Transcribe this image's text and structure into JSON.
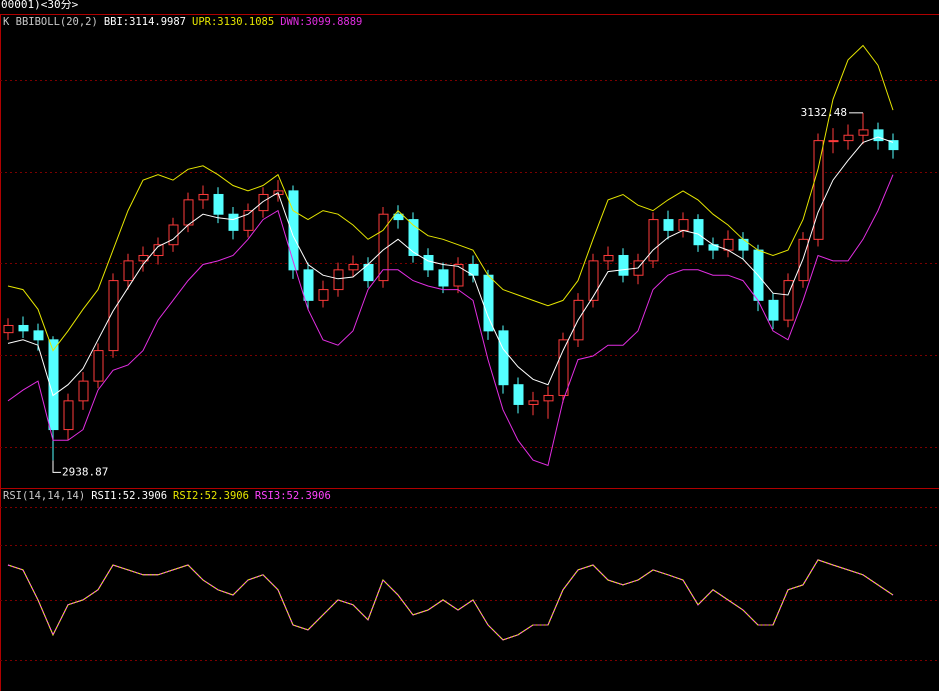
{
  "chart_data": [
    {
      "type": "candlestick",
      "title": "00001)<30分>",
      "indicator": "K  BBIBOLL(20,2)",
      "ylim": [
        2924,
        3187
      ],
      "up_color": "#ff3b3b",
      "down_color": "#54ffff",
      "high_label": "3132.48",
      "low_label": "2938.87",
      "ohlc": {
        "open": [
          3010,
          3014,
          3011,
          3006,
          2956,
          2972,
          2983,
          3000,
          3039,
          3050,
          3053,
          3059,
          3070,
          3084,
          3087,
          3076,
          3067,
          3078,
          3087,
          3089,
          3045,
          3028,
          3034,
          3045,
          3048,
          3039,
          3076,
          3073,
          3053,
          3045,
          3036,
          3048,
          3042,
          3011,
          2981,
          2970,
          2972,
          2975,
          3006,
          3028,
          3050,
          3053,
          3042,
          3050,
          3073,
          3067,
          3073,
          3059,
          3056,
          3062,
          3056,
          3028,
          3017,
          3039,
          3062,
          3117,
          3117,
          3120,
          3123,
          3117
        ],
        "high": [
          3018,
          3019,
          3015,
          3008,
          2976,
          2988,
          3004,
          3043,
          3054,
          3058,
          3063,
          3074,
          3088,
          3092,
          3091,
          3080,
          3082,
          3091,
          3095,
          3092,
          3049,
          3039,
          3049,
          3053,
          3052,
          3080,
          3081,
          3077,
          3057,
          3049,
          3052,
          3053,
          3045,
          3014,
          2985,
          2977,
          2980,
          3010,
          3032,
          3054,
          3058,
          3057,
          3054,
          3077,
          3078,
          3077,
          3076,
          3063,
          3067,
          3066,
          3059,
          3032,
          3043,
          3066,
          3121,
          3124,
          3126,
          3132.48,
          3127,
          3121
        ],
        "low": [
          3006,
          3007,
          3000,
          2938.87,
          2950,
          2967,
          2979,
          2996,
          3034,
          3044,
          3048,
          3055,
          3066,
          3079,
          3071,
          3062,
          3063,
          3074,
          3083,
          3040,
          3023,
          3024,
          3030,
          3041,
          3035,
          3035,
          3068,
          3049,
          3041,
          3032,
          3032,
          3038,
          3006,
          2976,
          2965,
          2964,
          2962,
          2971,
          3002,
          3024,
          3045,
          3038,
          3037,
          3046,
          3062,
          3063,
          3055,
          3051,
          3052,
          3051,
          3022,
          3012,
          3013,
          3035,
          3058,
          3110,
          3112,
          3115,
          3112,
          3107
        ],
        "close": [
          3014,
          3011,
          3006,
          2956,
          2972,
          2983,
          3000,
          3039,
          3050,
          3053,
          3059,
          3070,
          3084,
          3087,
          3076,
          3067,
          3078,
          3087,
          3089,
          3045,
          3028,
          3034,
          3045,
          3048,
          3039,
          3076,
          3073,
          3053,
          3045,
          3036,
          3048,
          3042,
          3011,
          2981,
          2970,
          2972,
          2975,
          3006,
          3028,
          3050,
          3053,
          3042,
          3050,
          3073,
          3067,
          3073,
          3059,
          3056,
          3062,
          3056,
          3028,
          3017,
          3039,
          3062,
          3117,
          3117,
          3120,
          3123,
          3117,
          3112
        ]
      },
      "series": [
        {
          "label": "BBI:3114.9987",
          "color": "#ffffff",
          "values": [
            3004,
            3006,
            3003,
            2975,
            2981,
            2990,
            3006,
            3022,
            3035,
            3048,
            3058,
            3062,
            3070,
            3076,
            3074,
            3073,
            3076,
            3083,
            3088,
            3064,
            3048,
            3042,
            3040,
            3041,
            3048,
            3056,
            3062,
            3055,
            3050,
            3048,
            3047,
            3042,
            3019,
            3001,
            2991,
            2984,
            2981,
            3000,
            3017,
            3030,
            3044,
            3045,
            3046,
            3056,
            3063,
            3067,
            3065,
            3059,
            3056,
            3051,
            3042,
            3032,
            3031,
            3051,
            3077,
            3095,
            3106,
            3116,
            3119,
            3116
          ]
        },
        {
          "label": "UPR:3130.1085",
          "color": "#e6e600",
          "values": [
            3036,
            3034,
            3023,
            3000,
            3011,
            3023,
            3034,
            3056,
            3078,
            3095,
            3098,
            3095,
            3101,
            3103,
            3098,
            3092,
            3089,
            3092,
            3098,
            3078,
            3073,
            3078,
            3076,
            3070,
            3062,
            3067,
            3078,
            3070,
            3064,
            3062,
            3059,
            3056,
            3042,
            3034,
            3031,
            3028,
            3025,
            3028,
            3039,
            3062,
            3084,
            3087,
            3081,
            3078,
            3084,
            3089,
            3084,
            3076,
            3070,
            3062,
            3056,
            3053,
            3056,
            3073,
            3101,
            3140,
            3162,
            3170,
            3159,
            3134
          ]
        },
        {
          "label": "DWN:3099.8889",
          "color": "#e22ee2",
          "values": [
            2972,
            2978,
            2983,
            2950,
            2950,
            2956,
            2978,
            2989,
            2992,
            3000,
            3017,
            3028,
            3039,
            3048,
            3050,
            3053,
            3062,
            3073,
            3078,
            3050,
            3023,
            3006,
            3003,
            3011,
            3034,
            3045,
            3045,
            3039,
            3036,
            3034,
            3034,
            3028,
            2995,
            2967,
            2950,
            2939,
            2936,
            2972,
            2995,
            2997,
            3003,
            3003,
            3011,
            3034,
            3042,
            3045,
            3045,
            3042,
            3042,
            3039,
            3028,
            3011,
            3006,
            3028,
            3053,
            3050,
            3050,
            3062,
            3078,
            3098
          ]
        }
      ]
    },
    {
      "type": "line",
      "title": "RSI(14,14,14)",
      "ylim": [
        2,
        100
      ],
      "series": [
        {
          "label": "RSI1:52.3906",
          "color": "#ffffff",
          "values": [
            68.4,
            65.8,
            50,
            31.6,
            47.4,
            50,
            55.3,
            68.4,
            65.8,
            63.2,
            63.2,
            65.8,
            68.4,
            60.5,
            55.3,
            52.6,
            60.5,
            63.2,
            55.3,
            36.8,
            34.2,
            42.1,
            50,
            47.4,
            39.5,
            60.5,
            52.6,
            42.1,
            44.7,
            50,
            44.7,
            50,
            36.8,
            28.9,
            31.6,
            36.8,
            36.8,
            55.3,
            65.8,
            68.4,
            60.5,
            57.9,
            60.5,
            65.8,
            63.2,
            60.5,
            47.4,
            55.3,
            50,
            44.7,
            36.8,
            36.8,
            55.3,
            57.9,
            71.1,
            68.4,
            65.8,
            63.2,
            57.9,
            52.6
          ]
        },
        {
          "label": "RSI2:52.3906",
          "color": "#e6e600",
          "values": [
            68.4,
            65.8,
            50,
            31.6,
            47.4,
            50,
            55.3,
            68.4,
            65.8,
            63.2,
            63.2,
            65.8,
            68.4,
            60.5,
            55.3,
            52.6,
            60.5,
            63.2,
            55.3,
            36.8,
            34.2,
            42.1,
            50,
            47.4,
            39.5,
            60.5,
            52.6,
            42.1,
            44.7,
            50,
            44.7,
            50,
            36.8,
            28.9,
            31.6,
            36.8,
            36.8,
            55.3,
            65.8,
            68.4,
            60.5,
            57.9,
            60.5,
            65.8,
            63.2,
            60.5,
            47.4,
            55.3,
            50,
            44.7,
            36.8,
            36.8,
            55.3,
            57.9,
            71.1,
            68.4,
            65.8,
            63.2,
            57.9,
            52.6
          ]
        },
        {
          "label": "RSI3:52.3906",
          "color": "#ff44ff",
          "values": [
            68.4,
            65.8,
            50,
            31.6,
            47.4,
            50,
            55.3,
            68.4,
            65.8,
            63.2,
            63.2,
            65.8,
            68.4,
            60.5,
            55.3,
            52.6,
            60.5,
            63.2,
            55.3,
            36.8,
            34.2,
            42.1,
            50,
            47.4,
            39.5,
            60.5,
            52.6,
            42.1,
            44.7,
            50,
            44.7,
            50,
            36.8,
            28.9,
            31.6,
            36.8,
            36.8,
            55.3,
            65.8,
            68.4,
            60.5,
            57.9,
            60.5,
            65.8,
            63.2,
            60.5,
            47.4,
            55.3,
            50,
            44.7,
            36.8,
            36.8,
            55.3,
            57.9,
            71.1,
            68.4,
            65.8,
            63.2,
            57.9,
            52.6
          ]
        }
      ]
    }
  ]
}
